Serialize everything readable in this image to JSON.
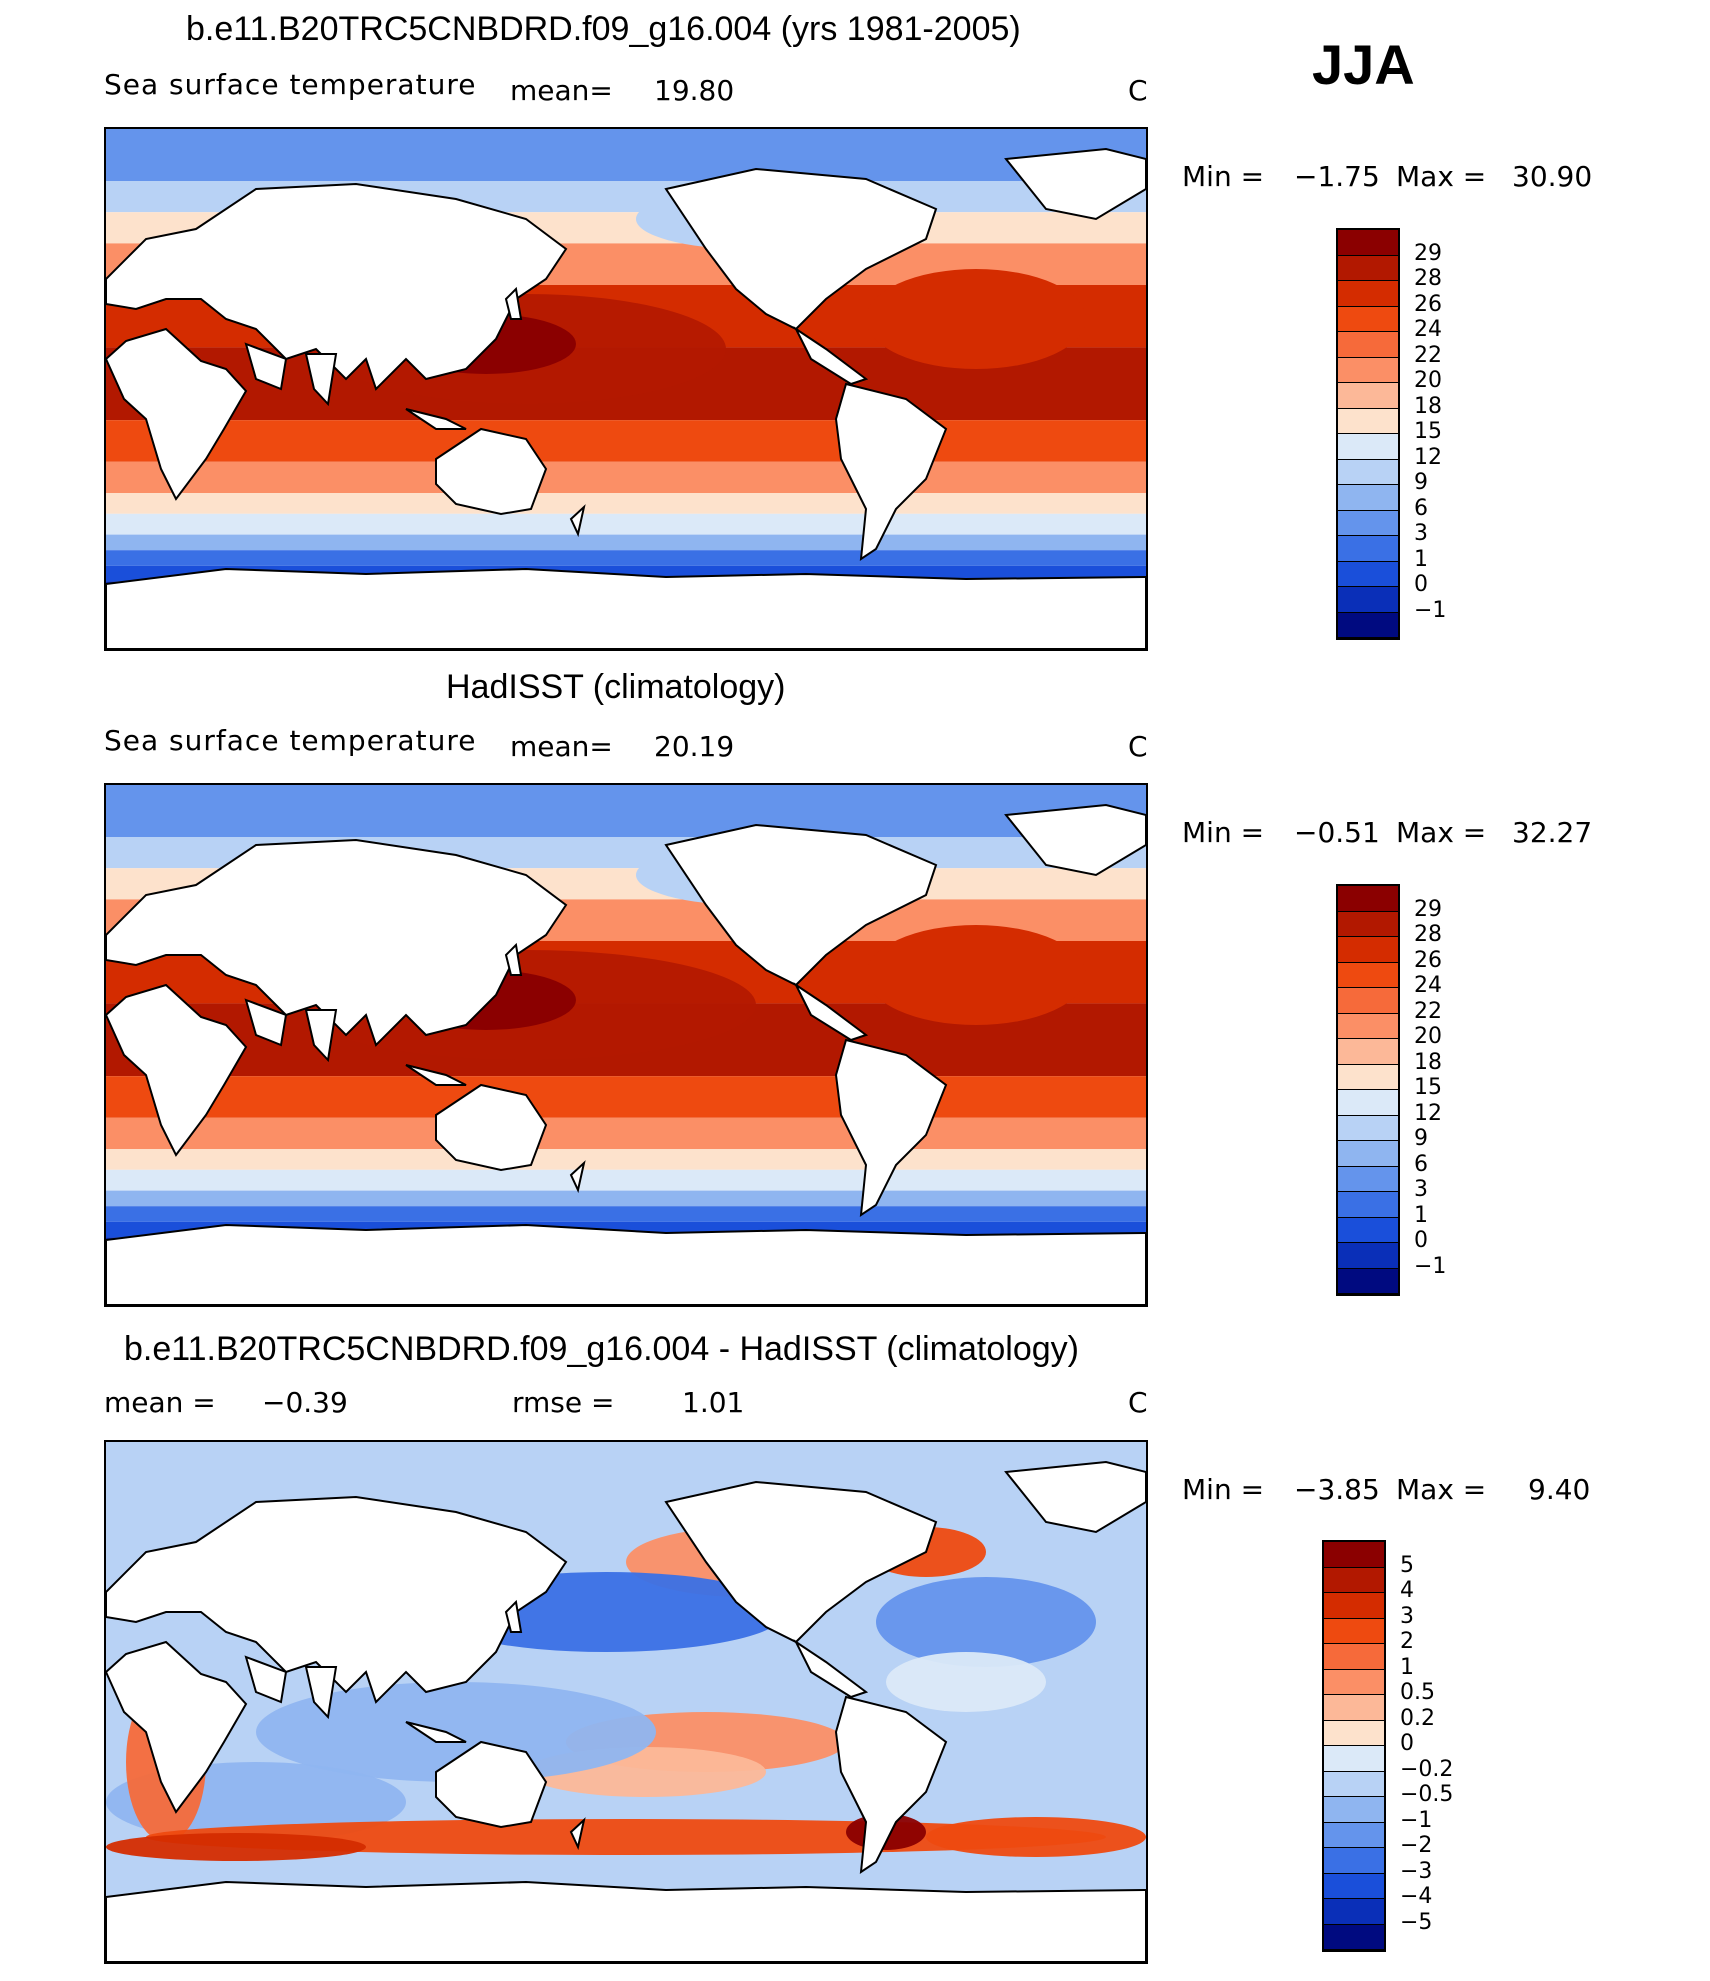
{
  "season": "JJA",
  "panels": [
    {
      "title": "b.e11.B20TRC5CNBDRD.f09_g16.004 (yrs 1981-2005)",
      "left_label": "Sea surface temperature",
      "mean_label": "mean=",
      "mean_value": "19.80",
      "units": "C",
      "min_label": "Min =",
      "min_value": "−1.75",
      "max_label": "Max =",
      "max_value": "30.90",
      "levels": [
        "29",
        "28",
        "26",
        "24",
        "22",
        "20",
        "18",
        "15",
        "12",
        "9",
        "6",
        "3",
        "1",
        "0",
        "−1"
      ],
      "colors": [
        "#8b0000",
        "#b21800",
        "#d42c00",
        "#ee4a10",
        "#f66a3a",
        "#fb8f66",
        "#fcb898",
        "#fde2cc",
        "#dbe9f8",
        "#b8d2f5",
        "#8fb5f0",
        "#6494ec",
        "#3a70e5",
        "#1a4fda",
        "#0a2fb8",
        "#000a80"
      ]
    },
    {
      "title": "HadISST (climatology)",
      "left_label": "Sea surface temperature",
      "mean_label": "mean=",
      "mean_value": "20.19",
      "units": "C",
      "min_label": "Min =",
      "min_value": "−0.51",
      "max_label": "Max =",
      "max_value": "32.27",
      "levels": [
        "29",
        "28",
        "26",
        "24",
        "22",
        "20",
        "18",
        "15",
        "12",
        "9",
        "6",
        "3",
        "1",
        "0",
        "−1"
      ],
      "colors": [
        "#8b0000",
        "#b21800",
        "#d42c00",
        "#ee4a10",
        "#f66a3a",
        "#fb8f66",
        "#fcb898",
        "#fde2cc",
        "#dbe9f8",
        "#b8d2f5",
        "#8fb5f0",
        "#6494ec",
        "#3a70e5",
        "#1a4fda",
        "#0a2fb8",
        "#000a80"
      ]
    },
    {
      "title": "b.e11.B20TRC5CNBDRD.f09_g16.004 - HadISST (climatology)",
      "mean_label": "mean =",
      "mean_value": "−0.39",
      "rmse_label": "rmse =",
      "rmse_value": "1.01",
      "units": "C",
      "min_label": "Min =",
      "min_value": "−3.85",
      "max_label": "Max =",
      "max_value": "9.40",
      "levels": [
        "5",
        "4",
        "3",
        "2",
        "1",
        "0.5",
        "0.2",
        "0",
        "−0.2",
        "−0.5",
        "−1",
        "−2",
        "−3",
        "−4",
        "−5"
      ],
      "colors": [
        "#8b0000",
        "#b21800",
        "#d42c00",
        "#ee4a10",
        "#f66a3a",
        "#fb8f66",
        "#fcb898",
        "#fde2cc",
        "#dbe9f8",
        "#b8d2f5",
        "#8fb5f0",
        "#6494ec",
        "#3a70e5",
        "#1a4fda",
        "#0a2fb8",
        "#000a80"
      ]
    }
  ],
  "chart_data": [
    {
      "type": "heatmap",
      "title": "b.e11.B20TRC5CNBDRD.f09_g16.004 (yrs 1981-2005)",
      "variable": "Sea surface temperature",
      "units": "C",
      "mean": 19.8,
      "min": -1.75,
      "max": 30.9,
      "contour_levels": [
        -1,
        0,
        1,
        3,
        6,
        9,
        12,
        15,
        18,
        20,
        22,
        24,
        26,
        28,
        29
      ]
    },
    {
      "type": "heatmap",
      "title": "HadISST (climatology)",
      "variable": "Sea surface temperature",
      "units": "C",
      "mean": 20.19,
      "min": -0.51,
      "max": 32.27,
      "contour_levels": [
        -1,
        0,
        1,
        3,
        6,
        9,
        12,
        15,
        18,
        20,
        22,
        24,
        26,
        28,
        29
      ]
    },
    {
      "type": "heatmap",
      "title": "b.e11.B20TRC5CNBDRD.f09_g16.004 - HadISST (climatology)",
      "units": "C",
      "mean": -0.39,
      "rmse": 1.01,
      "min": -3.85,
      "max": 9.4,
      "contour_levels": [
        -5,
        -4,
        -3,
        -2,
        -1,
        -0.5,
        -0.2,
        0,
        0.2,
        0.5,
        1,
        2,
        3,
        4,
        5
      ]
    }
  ]
}
